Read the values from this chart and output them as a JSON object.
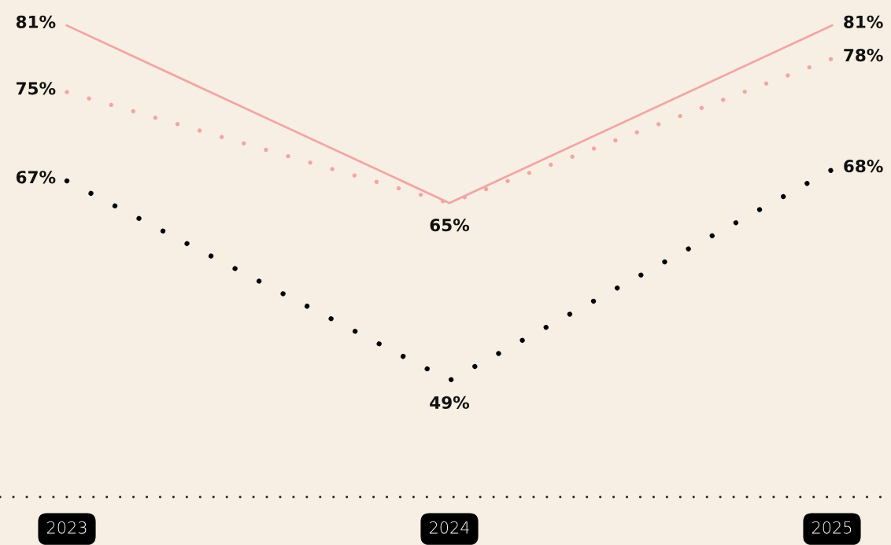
{
  "chart_data": {
    "type": "line",
    "categories": [
      "2023",
      "2024",
      "2025"
    ],
    "ylim": [
      38.5,
      83.3
    ],
    "grid": false,
    "legend": false,
    "tick_labels": "x",
    "marker": "none",
    "series": [
      {
        "color": "#f2a5a5",
        "line_style": "solid",
        "values": [
          81,
          65,
          81
        ],
        "value_labels": [
          "81%",
          "65%",
          "81%"
        ]
      },
      {
        "color": "#f2a5a5",
        "line_style": "dotted",
        "values": [
          75,
          65,
          78
        ],
        "value_labels": [
          "75%",
          null,
          "78%"
        ]
      },
      {
        "color": "#000000",
        "line_style": "dotted",
        "values": [
          67,
          49,
          68
        ],
        "value_labels": [
          "67%",
          "49%",
          "68%"
        ]
      }
    ]
  }
}
